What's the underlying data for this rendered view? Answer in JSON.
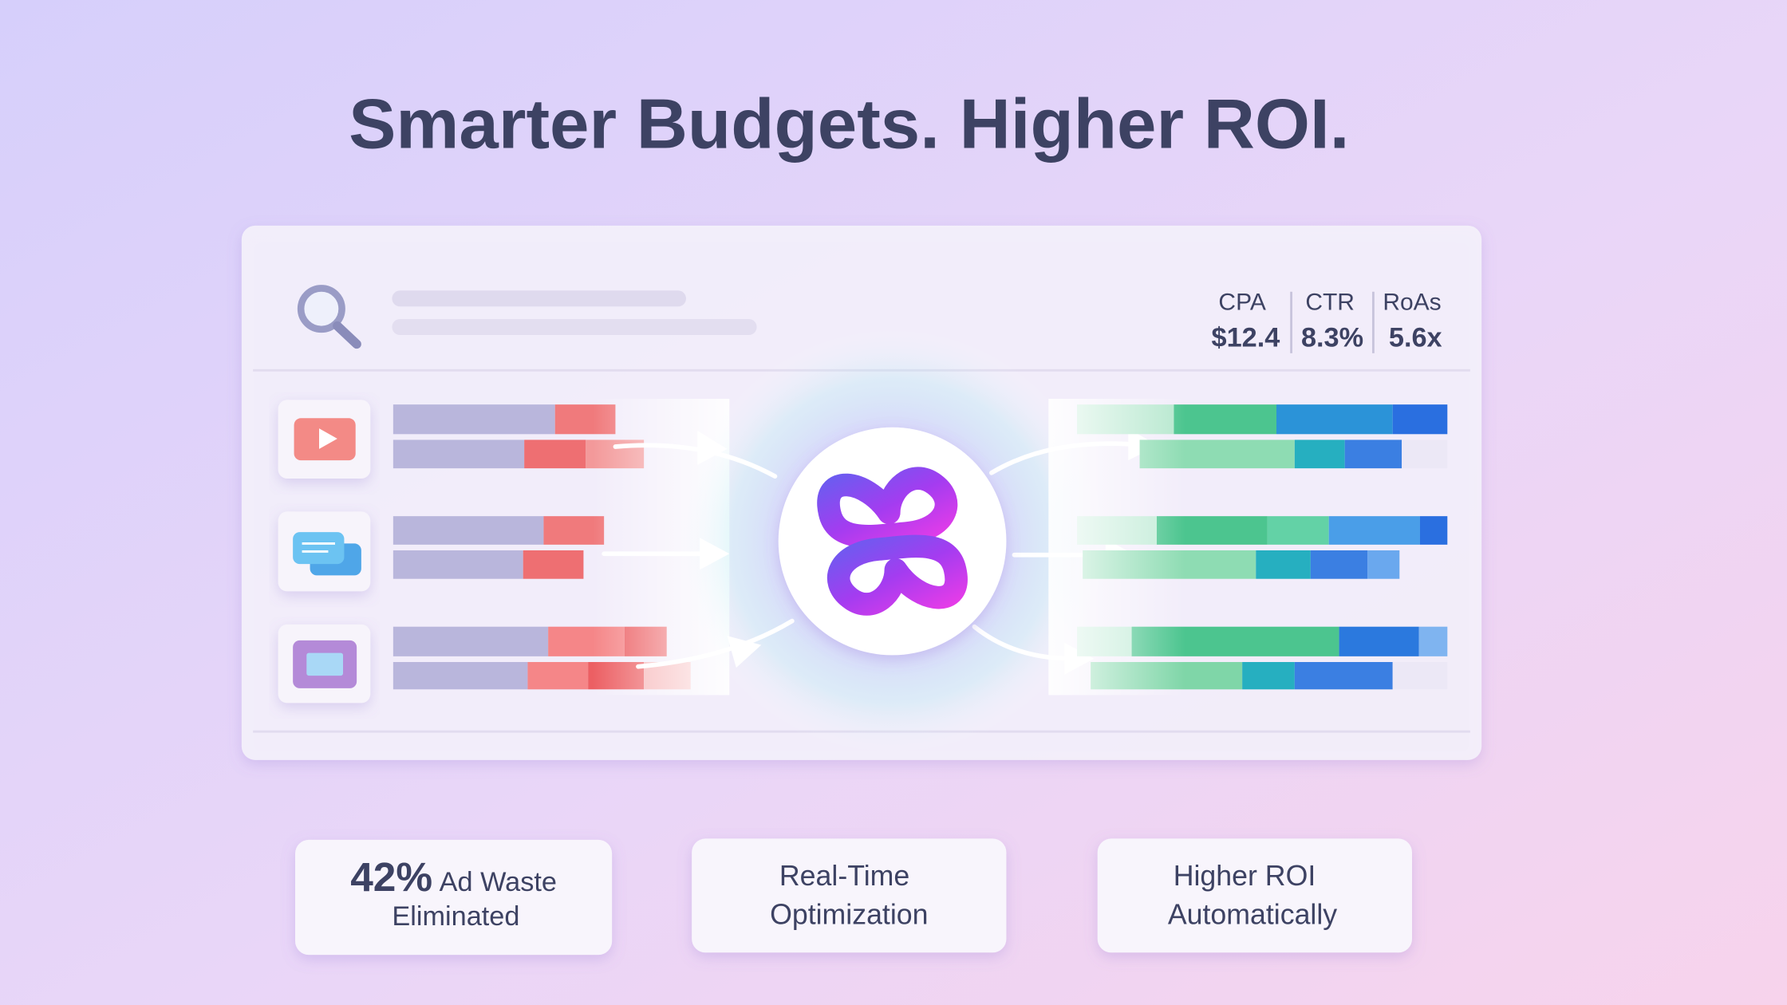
{
  "header": {
    "title": "Smarter Budgets. Higher ROI."
  },
  "metrics": [
    {
      "label": "CPA",
      "value": "$12.4"
    },
    {
      "label": "CTR",
      "value": "8.3%"
    },
    {
      "label": "RoAs",
      "value": "5.6x"
    }
  ],
  "cards": [
    {
      "highlight": "42%",
      "lines": [
        "Ad Waste",
        "Eliminated"
      ]
    },
    {
      "lines": [
        "Real-Time",
        "Optimization"
      ]
    },
    {
      "lines": [
        "Higher ROI",
        "Automatically"
      ]
    }
  ]
}
